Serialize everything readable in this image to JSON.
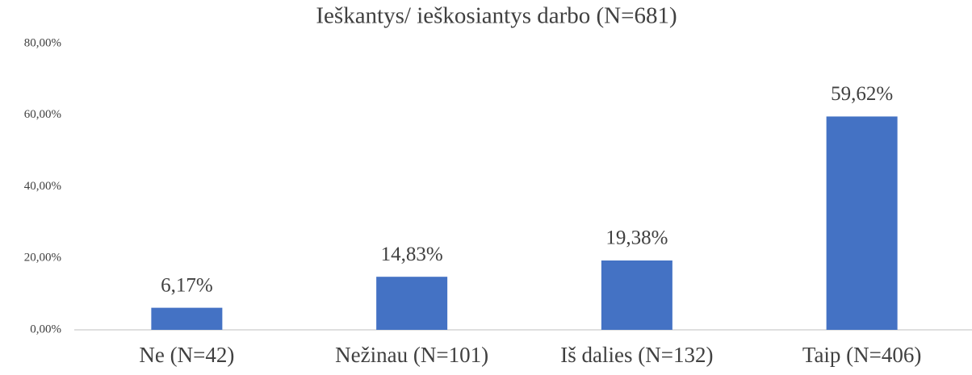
{
  "chart_data": {
    "type": "bar",
    "title": "Ieškantys/ ieškosiantys darbo (N=681)",
    "categories": [
      "Ne (N=42)",
      "Nežinau (N=101)",
      "Iš dalies (N=132)",
      "Taip (N=406)"
    ],
    "values": [
      6.17,
      14.83,
      19.38,
      59.62
    ],
    "value_labels": [
      "6,17%",
      "14,83%",
      "19,38%",
      "59,62%"
    ],
    "color": "#4472c4",
    "ylim": [
      0,
      80
    ],
    "yticks": [
      {
        "value": 0,
        "label": "0,00%"
      },
      {
        "value": 20,
        "label": "20,00%"
      },
      {
        "value": 40,
        "label": "40,00%"
      },
      {
        "value": 60,
        "label": "60,00%"
      },
      {
        "value": 80,
        "label": "80,00%"
      }
    ],
    "grid": false
  }
}
